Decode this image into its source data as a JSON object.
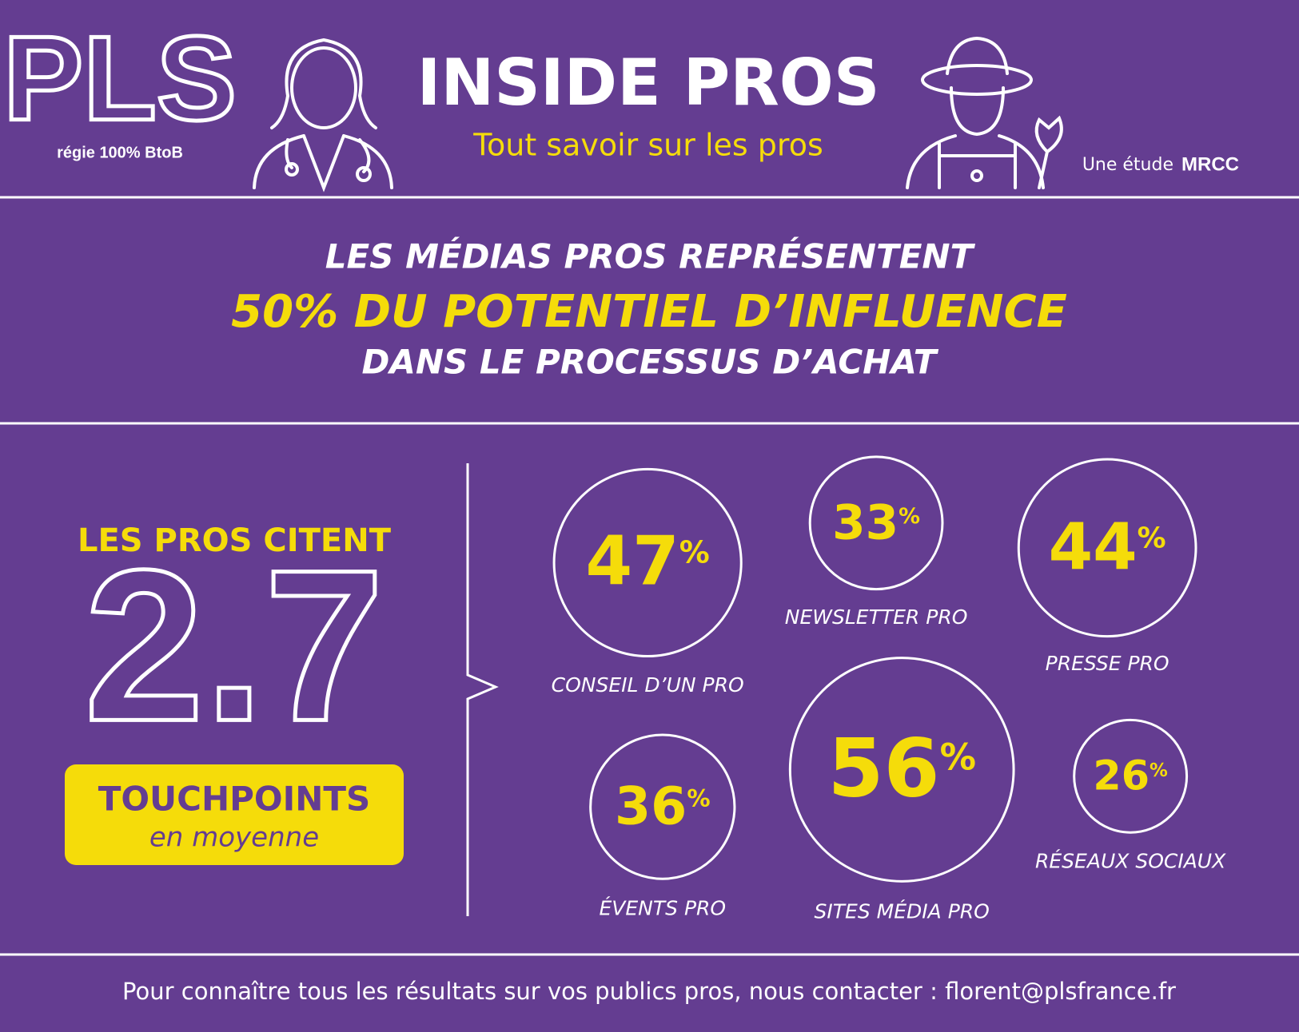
{
  "header": {
    "logo": "PLS",
    "logo_tagline": "régie 100% BtoB",
    "title": "INSIDE PROS",
    "subtitle": "Tout savoir sur les pros",
    "study_prefix": "Une étude",
    "study_brand": "MRCC"
  },
  "headline": {
    "line1": "LES MÉDIAS PROS REPRÉSENTENT",
    "line2": "50% DU POTENTIEL D’INFLUENCE",
    "line3": "DANS LE PROCESSUS D’ACHAT"
  },
  "summary": {
    "intro": "LES PROS CITENT",
    "number": "2.7",
    "unit": "TOUCHPOINTS",
    "note": "en moyenne"
  },
  "touchpoints": [
    {
      "value": "47",
      "unit": "%",
      "label": "CONSEIL D’UN PRO"
    },
    {
      "value": "33",
      "unit": "%",
      "label": "NEWSLETTER PRO"
    },
    {
      "value": "44",
      "unit": "%",
      "label": "PRESSE PRO"
    },
    {
      "value": "36",
      "unit": "%",
      "label": "ÉVENTS PRO"
    },
    {
      "value": "56",
      "unit": "%",
      "label": "SITES MÉDIA PRO"
    },
    {
      "value": "26",
      "unit": "%",
      "label": "RÉSEAUX SOCIAUX"
    }
  ],
  "footer": "Pour connaître tous les résultats sur vos publics pros, nous contacter : florent@plsfrance.fr"
}
